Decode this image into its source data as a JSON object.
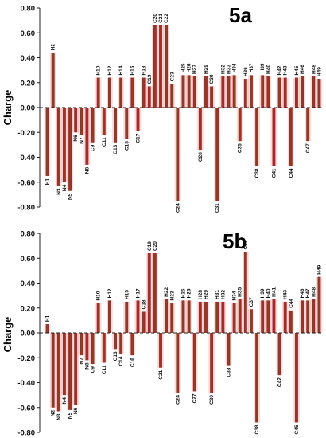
{
  "chart_data": [
    {
      "type": "bar",
      "title": "5a",
      "ylabel": "Charge",
      "ylim": [
        -0.8,
        0.8
      ],
      "yticks": [
        "0.80",
        "0.60",
        "0.40",
        "0.20",
        "0.00",
        "-0.20",
        "-0.40",
        "-0.60",
        "-0.80"
      ],
      "categories": [
        "H1",
        "H2",
        "N3",
        "N4",
        "N5",
        "N6",
        "N7",
        "N8",
        "C9",
        "H10",
        "C11",
        "H12",
        "C13",
        "H14",
        "C15",
        "H16",
        "C17",
        "H18",
        "C19",
        "C20",
        "C21",
        "C22",
        "C23",
        "C24",
        "H25",
        "H26",
        "H27",
        "C28",
        "H29",
        "C30",
        "C31",
        "H32",
        "H33",
        "H34",
        "C35",
        "H36",
        "H37",
        "C38",
        "H39",
        "H40",
        "C41",
        "H42",
        "H43",
        "C44",
        "H45",
        "H46",
        "C47",
        "H48",
        "H49"
      ],
      "values": [
        -0.55,
        0.44,
        -0.63,
        -0.6,
        -0.67,
        -0.2,
        -0.22,
        -0.46,
        -0.28,
        0.24,
        -0.22,
        0.24,
        -0.28,
        0.24,
        -0.25,
        0.24,
        -0.19,
        0.24,
        0.17,
        0.66,
        0.66,
        0.66,
        0.19,
        -0.75,
        0.26,
        0.26,
        0.25,
        -0.34,
        0.25,
        0.17,
        -0.75,
        0.25,
        0.25,
        0.26,
        -0.27,
        0.23,
        0.26,
        -0.47,
        0.26,
        0.25,
        -0.47,
        0.24,
        0.24,
        -0.47,
        0.24,
        0.25,
        -0.27,
        0.25,
        0.23
      ],
      "colors": {
        "bar": "#a52a2a",
        "glow": "#ff3333",
        "stem": "#2e7d1f"
      }
    },
    {
      "type": "bar",
      "title": "5b",
      "ylabel": "Charge",
      "ylim": [
        -0.8,
        0.8
      ],
      "yticks": [
        "0.80",
        "0.60",
        "0.40",
        "0.20",
        "0.00",
        "-0.20",
        "-0.40",
        "-0.60",
        "-0.80"
      ],
      "categories": [
        "H1",
        "N2",
        "N3",
        "N4",
        "N5",
        "N6",
        "N7",
        "N8",
        "C9",
        "H10",
        "C11",
        "H12",
        "C13",
        "C14",
        "H15",
        "C16",
        "H17",
        "C18",
        "C19",
        "C20",
        "C21",
        "H22",
        "H23",
        "C24",
        "H25",
        "H26",
        "C27",
        "H28",
        "H29",
        "C30",
        "H31",
        "H32",
        "C33",
        "H34",
        "H35",
        "C36",
        "C37",
        "C38",
        "H39",
        "H40",
        "H41",
        "C42",
        "H43",
        "C44",
        "C45",
        "H46",
        "H47",
        "H48",
        "H49"
      ],
      "values": [
        0.07,
        -0.6,
        -0.63,
        -0.5,
        -0.62,
        -0.58,
        -0.18,
        -0.22,
        -0.25,
        0.24,
        -0.24,
        0.26,
        -0.13,
        -0.17,
        0.25,
        -0.18,
        0.26,
        0.17,
        0.64,
        0.64,
        -0.28,
        0.27,
        0.24,
        -0.48,
        0.26,
        0.26,
        -0.47,
        0.25,
        0.25,
        -0.48,
        0.25,
        0.25,
        -0.26,
        0.24,
        0.27,
        0.65,
        0.19,
        -0.72,
        0.26,
        0.26,
        0.27,
        -0.34,
        0.25,
        0.18,
        -0.72,
        0.26,
        0.26,
        0.27,
        0.45
      ],
      "colors": {
        "bar": "#a52a2a",
        "glow": "#ff3333",
        "stem": "#2e7d1f"
      }
    }
  ]
}
